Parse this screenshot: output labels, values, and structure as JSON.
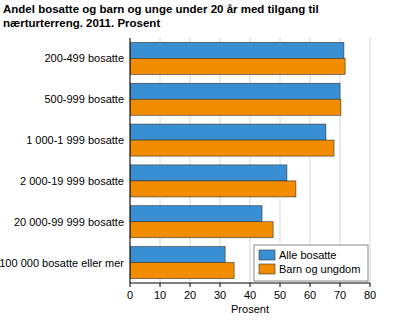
{
  "chart_data": {
    "type": "bar",
    "orientation": "horizontal",
    "title": "Andel bosatte og barn og unge under 20 år med tilgang til nærturterreng. 2011. Prosent",
    "x_label": "Prosent",
    "categories": [
      "200-499 bosatte",
      "500-999 bosatte",
      "1 000-1 999 bosatte",
      "2 000-19 999 bosatte",
      "20 000-99 999 bosatte",
      "100 000 bosatte eller mer"
    ],
    "series": [
      {
        "name": "Alle bosatte",
        "color": "#3a8fd2",
        "values": [
          71.3,
          70,
          65.3,
          52.3,
          44,
          31.7
        ]
      },
      {
        "name": "Barn og ungdom",
        "color": "#f28c00",
        "values": [
          71.7,
          70.3,
          68,
          55.3,
          47.7,
          34.7
        ]
      }
    ],
    "xlim": [
      0,
      80
    ],
    "xticks": [
      0,
      10,
      20,
      30,
      40,
      50,
      60,
      70,
      80
    ],
    "grid": true,
    "legend": "lower right"
  }
}
